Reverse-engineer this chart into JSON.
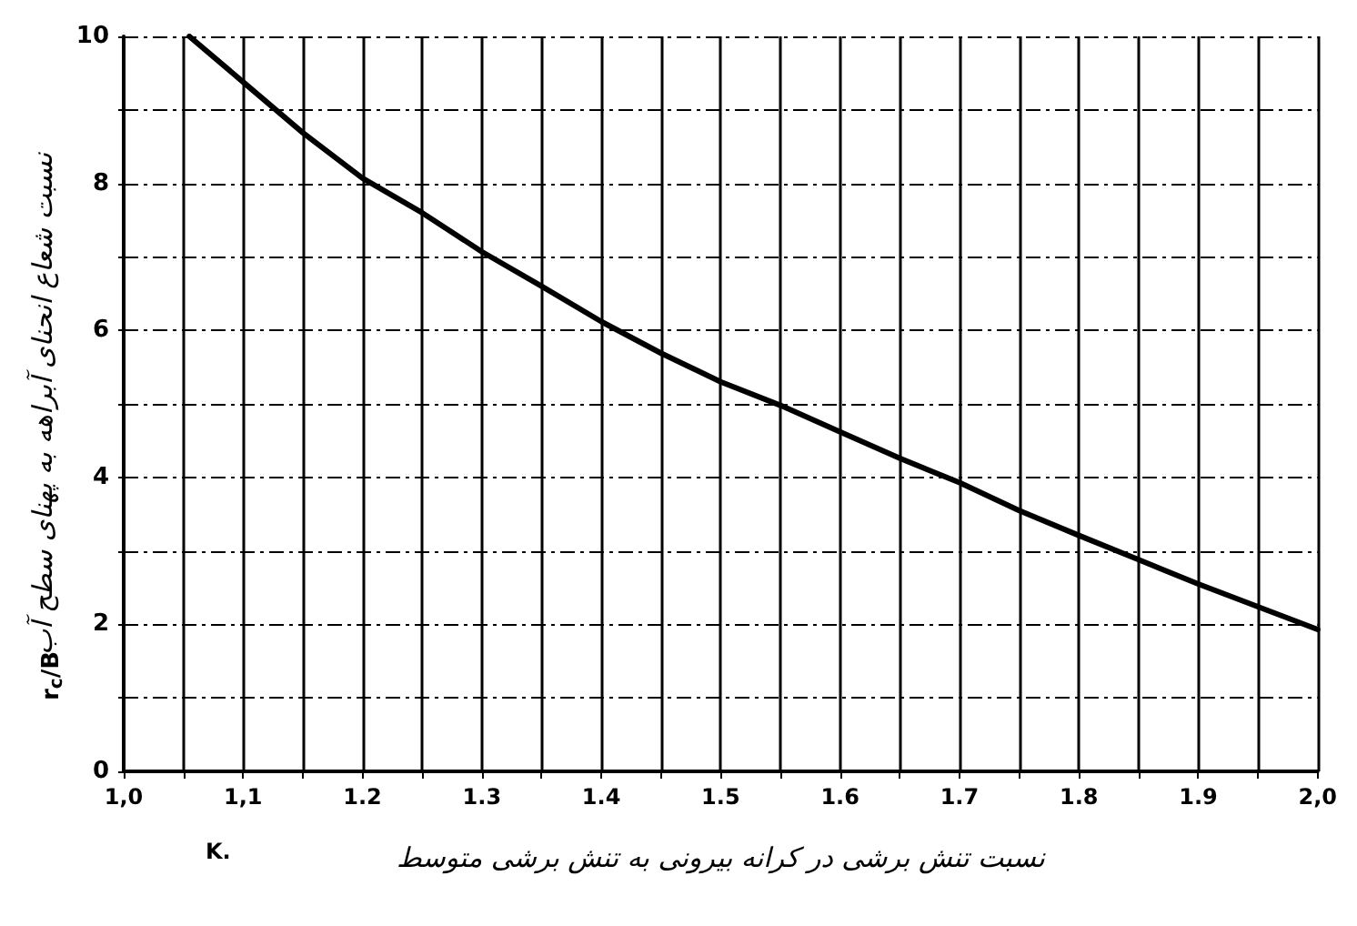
{
  "chart_data": {
    "type": "line",
    "xlabel": "نسبت تنش برشی در کرانه بیرونی به تنش برشی متوسط",
    "ylabel": "نسبت شعاع انحنای آبراهه به پهنای سطح آب",
    "annotations": [
      "r$_{c}$/B",
      "K."
    ],
    "x": [
      1.055,
      1.1,
      1.15,
      1.2,
      1.25,
      1.3,
      1.35,
      1.4,
      1.45,
      1.5,
      1.55,
      1.6,
      1.65,
      1.7,
      1.75,
      1.8,
      1.85,
      1.9,
      1.95,
      2.0
    ],
    "series": [
      {
        "color": "#000000",
        "values": [
          10,
          9.38,
          8.69,
          8.07,
          7.6,
          7.07,
          6.6,
          6.12,
          5.69,
          5.3,
          4.98,
          4.62,
          4.26,
          3.93,
          3.55,
          3.21,
          2.88,
          2.55,
          2.24,
          1.93
        ]
      }
    ],
    "xlim": [
      1.0,
      2.0
    ],
    "xticks": [
      {
        "value": 1.0,
        "label": "1,0"
      },
      {
        "value": 1.05,
        "label": null
      },
      {
        "value": 1.1,
        "label": "1,1"
      },
      {
        "value": 1.15,
        "label": null
      },
      {
        "value": 1.2,
        "label": "1.2"
      },
      {
        "value": 1.25,
        "label": null
      },
      {
        "value": 1.3,
        "label": "1.3"
      },
      {
        "value": 1.35,
        "label": null
      },
      {
        "value": 1.4,
        "label": "1.4"
      },
      {
        "value": 1.45,
        "label": null
      },
      {
        "value": 1.5,
        "label": "1.5"
      },
      {
        "value": 1.55,
        "label": null
      },
      {
        "value": 1.6,
        "label": "1.6"
      },
      {
        "value": 1.65,
        "label": null
      },
      {
        "value": 1.7,
        "label": "1.7"
      },
      {
        "value": 1.75,
        "label": null
      },
      {
        "value": 1.8,
        "label": "1.8"
      },
      {
        "value": 1.85,
        "label": null
      },
      {
        "value": 1.9,
        "label": "1.9"
      },
      {
        "value": 1.95,
        "label": null
      },
      {
        "value": 2.0,
        "label": "2,0"
      }
    ],
    "ylim": [
      0,
      10
    ],
    "yticks": [
      0,
      {
        "value": 1,
        "label": null
      },
      2,
      {
        "value": 3,
        "label": null
      },
      4,
      {
        "value": 5,
        "label": null
      },
      6,
      {
        "value": 7,
        "label": null
      },
      8,
      {
        "value": 9,
        "label": null
      },
      10
    ],
    "grid": true,
    "marker": "none",
    "line_style": "solid"
  }
}
